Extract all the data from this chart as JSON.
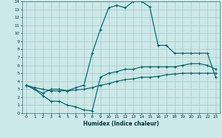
{
  "xlabel": "Humidex (Indice chaleur)",
  "bg_color": "#cce8e8",
  "grid_color": "#aacccc",
  "line_color": "#006666",
  "xlim": [
    -0.5,
    23.5
  ],
  "ylim": [
    0,
    14
  ],
  "line1_x": [
    0,
    1,
    2,
    3,
    4,
    5,
    6,
    7,
    8,
    9,
    10,
    11,
    12,
    13,
    14,
    15,
    16,
    17,
    18,
    19,
    20,
    21,
    22,
    23
  ],
  "line1_y": [
    3.5,
    3.0,
    2.5,
    3.0,
    3.0,
    2.8,
    3.2,
    3.5,
    7.5,
    10.5,
    13.2,
    13.5,
    13.2,
    14.0,
    14.0,
    13.3,
    8.5,
    8.5,
    7.5,
    7.5,
    7.5,
    7.5,
    7.5,
    4.5
  ],
  "line2_x": [
    0,
    1,
    2,
    3,
    4,
    5,
    6,
    7,
    8,
    9,
    10,
    11,
    12,
    13,
    14,
    15,
    16,
    17,
    18,
    19,
    20,
    21,
    22,
    23
  ],
  "line2_y": [
    3.5,
    3.0,
    2.2,
    1.5,
    1.5,
    1.0,
    0.8,
    0.4,
    0.3,
    4.5,
    5.0,
    5.2,
    5.5,
    5.5,
    5.8,
    5.8,
    5.8,
    5.8,
    5.8,
    6.0,
    6.2,
    6.2,
    6.0,
    5.5
  ],
  "line3_x": [
    0,
    1,
    2,
    3,
    4,
    5,
    6,
    7,
    8,
    9,
    10,
    11,
    12,
    13,
    14,
    15,
    16,
    17,
    18,
    19,
    20,
    21,
    22,
    23
  ],
  "line3_y": [
    3.5,
    3.2,
    3.0,
    2.8,
    2.8,
    2.8,
    2.9,
    3.0,
    3.2,
    3.5,
    3.7,
    4.0,
    4.2,
    4.3,
    4.5,
    4.5,
    4.6,
    4.8,
    4.9,
    5.0,
    5.0,
    5.0,
    5.0,
    5.0
  ]
}
